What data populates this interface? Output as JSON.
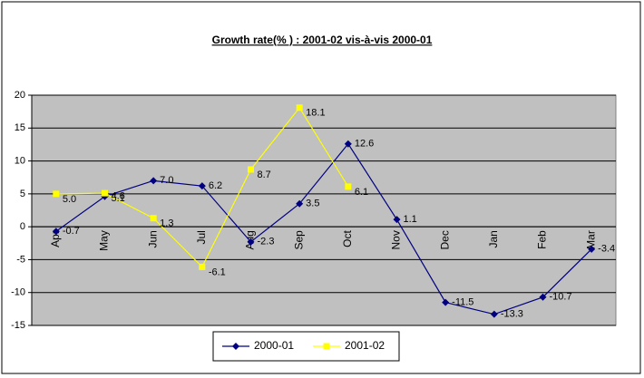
{
  "chart_data": {
    "type": "line",
    "title": "Growth rate(% ) : 2001-02 vis-à-vis 2000-01",
    "categories": [
      "Apr",
      "May",
      "Jun",
      "Jul",
      "Aug",
      "Sep",
      "Oct",
      "Nov",
      "Dec",
      "Jan",
      "Feb",
      "Mar"
    ],
    "series": [
      {
        "name": "2000-01",
        "color": "#000080",
        "marker": "diamond",
        "values": [
          -0.7,
          4.6,
          7.0,
          6.2,
          -2.3,
          3.5,
          12.6,
          1.1,
          -11.5,
          -13.3,
          -10.7,
          -3.4
        ],
        "value_labels": [
          "-0.7",
          "4.6",
          "7.0",
          "6.2",
          "-2.3",
          "3.5",
          "12.6",
          "1.1",
          "-11.5",
          "-13.3",
          "-10.7",
          "-3.4"
        ]
      },
      {
        "name": "2001-02",
        "color": "#ffff00",
        "marker": "square",
        "values": [
          5.0,
          5.1,
          1.3,
          -6.1,
          8.7,
          18.1,
          6.1,
          null,
          null,
          null,
          null,
          null
        ],
        "value_labels": [
          "5.0",
          "5.1",
          "1.3",
          "-6.1",
          "8.7",
          "18.1",
          "6.1",
          null,
          null,
          null,
          null,
          null
        ]
      }
    ],
    "ylim": [
      -15,
      20
    ],
    "yticks": [
      -15,
      -10,
      -5,
      0,
      5,
      10,
      15,
      20
    ],
    "grid": true,
    "legend": "bottom"
  }
}
